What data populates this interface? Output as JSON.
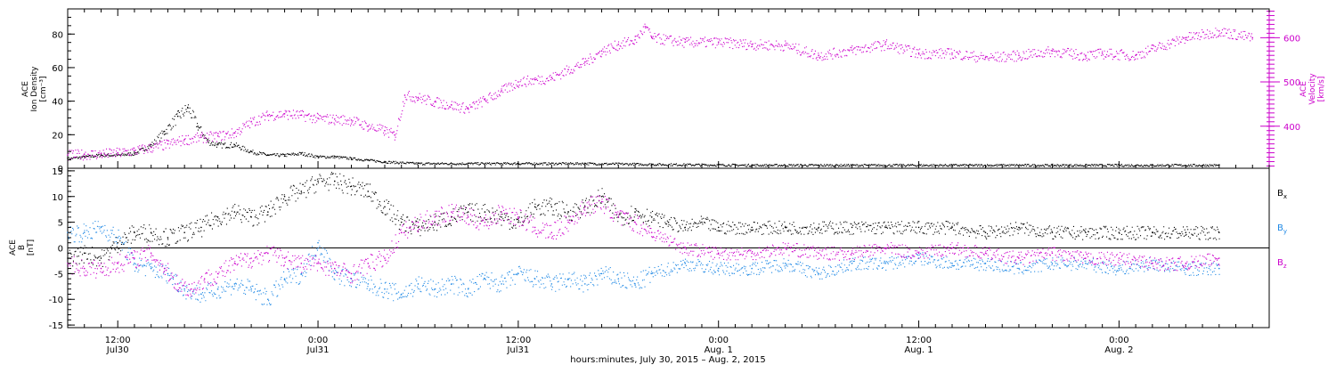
{
  "chart_data": [
    {
      "type": "scatter",
      "panel": "top",
      "left_axis": {
        "label_lines": [
          "ACE",
          "Ion Density",
          "[cm⁻³]"
        ],
        "ylim": [
          0,
          95
        ],
        "ticks": [
          0,
          20,
          40,
          60,
          80
        ]
      },
      "right_axis": {
        "label_lines": [
          "ACE",
          "Velocity",
          "[km/s]"
        ],
        "ylim": [
          305,
          665
        ],
        "ticks": [
          400,
          500,
          600
        ],
        "color": "#cc00cc"
      },
      "xlim_hours": [
        9,
        81
      ],
      "series": [
        {
          "color": "#000000",
          "axis": "left",
          "points": [
            [
              9,
              6
            ],
            [
              10,
              7
            ],
            [
              11,
              8
            ],
            [
              12,
              8
            ],
            [
              13,
              9
            ],
            [
              14,
              14
            ],
            [
              14.8,
              22
            ],
            [
              15.6,
              31
            ],
            [
              16.2,
              36
            ],
            [
              16.8,
              25
            ],
            [
              17.4,
              16
            ],
            [
              18,
              14
            ],
            [
              19,
              14
            ],
            [
              20,
              10
            ],
            [
              21,
              8
            ],
            [
              22,
              8
            ],
            [
              23,
              9
            ],
            [
              24,
              7
            ],
            [
              25,
              7
            ],
            [
              26,
              6
            ],
            [
              27,
              5
            ],
            [
              28,
              4
            ],
            [
              30,
              3
            ],
            [
              33,
              3
            ],
            [
              36,
              3
            ],
            [
              40,
              3
            ],
            [
              44,
              2.5
            ],
            [
              50,
              2
            ],
            [
              56,
              2
            ],
            [
              62,
              2
            ],
            [
              68,
              2
            ],
            [
              74,
              2
            ],
            [
              78,
              2
            ]
          ]
        },
        {
          "color": "#cc00cc",
          "axis": "right",
          "points": [
            [
              9,
              335
            ],
            [
              10,
              337
            ],
            [
              11,
              338
            ],
            [
              12,
              340
            ],
            [
              13,
              345
            ],
            [
              14,
              352
            ],
            [
              15,
              360
            ],
            [
              16,
              370
            ],
            [
              17,
              375
            ],
            [
              18,
              378
            ],
            [
              19,
              385
            ],
            [
              20,
              410
            ],
            [
              21,
              425
            ],
            [
              22,
              428
            ],
            [
              23,
              425
            ],
            [
              24,
              418
            ],
            [
              25,
              416
            ],
            [
              26,
              414
            ],
            [
              27,
              400
            ],
            [
              28,
              390
            ],
            [
              28.6,
              380
            ],
            [
              29.2,
              470
            ],
            [
              30,
              465
            ],
            [
              31,
              455
            ],
            [
              32,
              448
            ],
            [
              33,
              440
            ],
            [
              34,
              460
            ],
            [
              35,
              480
            ],
            [
              36,
              500
            ],
            [
              37,
              505
            ],
            [
              38,
              510
            ],
            [
              39,
              528
            ],
            [
              40,
              545
            ],
            [
              41,
              570
            ],
            [
              42,
              585
            ],
            [
              43,
              595
            ],
            [
              43.6,
              625
            ],
            [
              44,
              600
            ],
            [
              46,
              590
            ],
            [
              48,
              590
            ],
            [
              50,
              585
            ],
            [
              52,
              583
            ],
            [
              54,
              560
            ],
            [
              56,
              572
            ],
            [
              58,
              585
            ],
            [
              60,
              565
            ],
            [
              62,
              565
            ],
            [
              64,
              555
            ],
            [
              66,
              560
            ],
            [
              68,
              570
            ],
            [
              70,
              560
            ],
            [
              71,
              565
            ],
            [
              73,
              560
            ],
            [
              74,
              575
            ],
            [
              76,
              600
            ],
            [
              78,
              615
            ],
            [
              80,
              600
            ]
          ]
        }
      ]
    },
    {
      "type": "scatter",
      "panel": "bottom",
      "left_axis": {
        "label_lines": [
          "ACE",
          "B",
          "[nT]"
        ],
        "ylim": [
          -15.5,
          15.5
        ],
        "ticks": [
          -15,
          -10,
          -5,
          0,
          5,
          10,
          15
        ]
      },
      "xlim_hours": [
        9,
        81
      ],
      "legend_placement": "right",
      "series": [
        {
          "name": "Bx",
          "color": "#000000",
          "points": [
            [
              9,
              -2
            ],
            [
              10,
              -1
            ],
            [
              11,
              -2
            ],
            [
              12,
              1
            ],
            [
              13,
              3
            ],
            [
              14,
              3
            ],
            [
              15,
              2
            ],
            [
              16,
              3
            ],
            [
              17,
              4
            ],
            [
              18,
              6
            ],
            [
              19,
              7
            ],
            [
              20,
              6
            ],
            [
              21,
              7
            ],
            [
              22,
              10
            ],
            [
              23,
              11
            ],
            [
              24,
              13
            ],
            [
              25,
              13
            ],
            [
              26,
              12
            ],
            [
              27,
              11
            ],
            [
              28,
              8
            ],
            [
              29,
              5
            ],
            [
              30,
              4
            ],
            [
              31,
              5
            ],
            [
              32,
              6
            ],
            [
              33,
              7
            ],
            [
              34,
              7
            ],
            [
              35,
              6
            ],
            [
              36,
              5
            ],
            [
              37,
              8
            ],
            [
              38,
              8
            ],
            [
              39,
              7
            ],
            [
              40,
              8
            ],
            [
              41,
              10
            ],
            [
              42,
              6
            ],
            [
              43,
              7
            ],
            [
              44,
              6
            ],
            [
              45,
              5
            ],
            [
              46,
              4
            ],
            [
              47,
              5
            ],
            [
              48,
              4
            ],
            [
              50,
              4
            ],
            [
              52,
              4
            ],
            [
              54,
              4
            ],
            [
              56,
              4
            ],
            [
              58,
              4
            ],
            [
              60,
              4
            ],
            [
              62,
              4
            ],
            [
              64,
              3
            ],
            [
              66,
              4
            ],
            [
              68,
              3
            ],
            [
              70,
              3
            ],
            [
              72,
              3
            ],
            [
              74,
              3
            ],
            [
              76,
              3
            ],
            [
              78,
              3
            ]
          ]
        },
        {
          "name": "By",
          "color": "#1e88e5",
          "points": [
            [
              9,
              3
            ],
            [
              10,
              3
            ],
            [
              11,
              4
            ],
            [
              12,
              2
            ],
            [
              13,
              -3
            ],
            [
              14,
              -4
            ],
            [
              15,
              -5
            ],
            [
              16,
              -8
            ],
            [
              17,
              -9
            ],
            [
              18,
              -8
            ],
            [
              19,
              -7
            ],
            [
              20,
              -8
            ],
            [
              21,
              -10
            ],
            [
              22,
              -6
            ],
            [
              23,
              -5
            ],
            [
              24,
              1
            ],
            [
              25,
              -5
            ],
            [
              26,
              -6
            ],
            [
              27,
              -7
            ],
            [
              28,
              -8
            ],
            [
              29,
              -9
            ],
            [
              30,
              -7
            ],
            [
              31,
              -8
            ],
            [
              32,
              -7
            ],
            [
              33,
              -8
            ],
            [
              34,
              -6
            ],
            [
              35,
              -7
            ],
            [
              36,
              -5
            ],
            [
              37,
              -6
            ],
            [
              38,
              -7
            ],
            [
              39,
              -6
            ],
            [
              40,
              -7
            ],
            [
              41,
              -5
            ],
            [
              42,
              -6
            ],
            [
              43,
              -7
            ],
            [
              44,
              -5
            ],
            [
              46,
              -3
            ],
            [
              48,
              -4
            ],
            [
              50,
              -4
            ],
            [
              52,
              -3
            ],
            [
              54,
              -5
            ],
            [
              56,
              -3
            ],
            [
              58,
              -3
            ],
            [
              60,
              -2
            ],
            [
              62,
              -3
            ],
            [
              64,
              -3
            ],
            [
              66,
              -4
            ],
            [
              68,
              -3
            ],
            [
              70,
              -3
            ],
            [
              72,
              -4
            ],
            [
              74,
              -3
            ],
            [
              76,
              -4
            ],
            [
              78,
              -4
            ]
          ]
        },
        {
          "name": "Bz",
          "color": "#cc00cc",
          "points": [
            [
              9,
              -3
            ],
            [
              10,
              -4
            ],
            [
              11,
              -4
            ],
            [
              12,
              -3
            ],
            [
              13,
              -2
            ],
            [
              14,
              -1
            ],
            [
              14.8,
              -4
            ],
            [
              15.6,
              -7
            ],
            [
              16.4,
              -8
            ],
            [
              17.2,
              -6
            ],
            [
              18,
              -5
            ],
            [
              19,
              -3
            ],
            [
              20,
              -2
            ],
            [
              21,
              -1
            ],
            [
              22,
              -2
            ],
            [
              23,
              -3
            ],
            [
              24,
              -3
            ],
            [
              25,
              -4
            ],
            [
              26,
              -5
            ],
            [
              27,
              -3
            ],
            [
              28,
              -2
            ],
            [
              29,
              3
            ],
            [
              30,
              5
            ],
            [
              31,
              6
            ],
            [
              32,
              7
            ],
            [
              33,
              6
            ],
            [
              34,
              5
            ],
            [
              35,
              7
            ],
            [
              36,
              6
            ],
            [
              37,
              4
            ],
            [
              38,
              3
            ],
            [
              39,
              5
            ],
            [
              40,
              8
            ],
            [
              41,
              9
            ],
            [
              42,
              6
            ],
            [
              43,
              5
            ],
            [
              44,
              3
            ],
            [
              46,
              0
            ],
            [
              48,
              -1
            ],
            [
              50,
              -1
            ],
            [
              52,
              0
            ],
            [
              54,
              -1
            ],
            [
              56,
              -1
            ],
            [
              58,
              0
            ],
            [
              60,
              -1
            ],
            [
              62,
              0
            ],
            [
              64,
              -1
            ],
            [
              66,
              -2
            ],
            [
              68,
              -1
            ],
            [
              70,
              -2
            ],
            [
              72,
              -2
            ],
            [
              74,
              -3
            ],
            [
              76,
              -3
            ],
            [
              78,
              -2
            ]
          ]
        }
      ]
    }
  ],
  "x_axis": {
    "tick_labels": [
      {
        "hour": 12,
        "line1": "12:00",
        "line2": "Jul30"
      },
      {
        "hour": 24,
        "line1": "0:00",
        "line2": "Jul31"
      },
      {
        "hour": 36,
        "line1": "12:00",
        "line2": "Jul31"
      },
      {
        "hour": 48,
        "line1": "0:00",
        "line2": "Aug. 1"
      },
      {
        "hour": 60,
        "line1": "12:00",
        "line2": "Aug. 1"
      },
      {
        "hour": 72,
        "line1": "0:00",
        "line2": "Aug. 2"
      }
    ],
    "title": "hours:minutes, July 30, 2015 – Aug.  2, 2015"
  },
  "legend": {
    "items": [
      {
        "base": "B",
        "sub": "x",
        "color": "#000000"
      },
      {
        "base": "B",
        "sub": "y",
        "color": "#1e88e5"
      },
      {
        "base": "B",
        "sub": "z",
        "color": "#cc00cc"
      }
    ]
  }
}
